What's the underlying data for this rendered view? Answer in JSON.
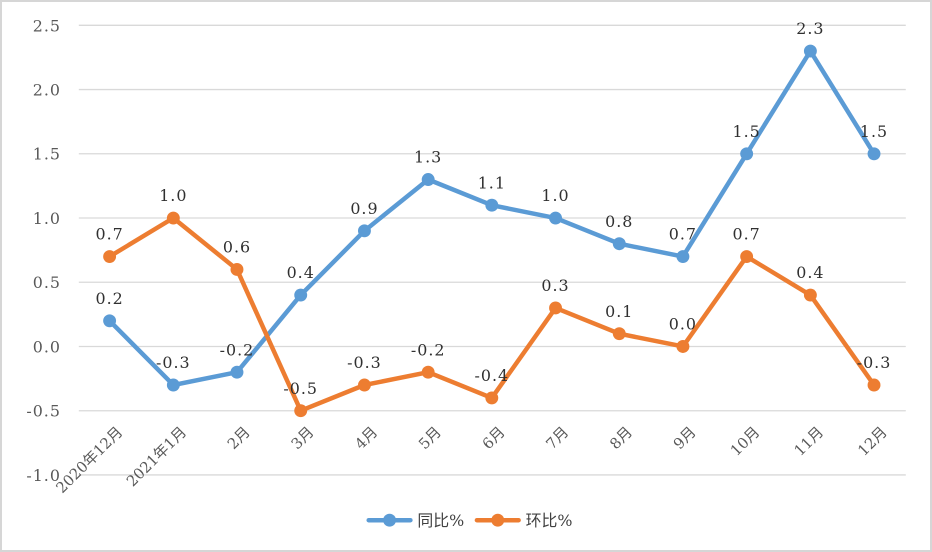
{
  "chart_data": {
    "type": "line",
    "title": "",
    "xlabel": "",
    "ylabel": "",
    "grid": true,
    "legend_position": "bottom",
    "categories": [
      "2020年12月",
      "2021年1月",
      "2月",
      "3月",
      "4月",
      "5月",
      "6月",
      "7月",
      "8月",
      "9月",
      "10月",
      "11月",
      "12月"
    ],
    "series": [
      {
        "name": "同比%",
        "color": "#5B9BD5",
        "values": [
          0.2,
          -0.3,
          -0.2,
          0.4,
          0.9,
          1.3,
          1.1,
          1.0,
          0.8,
          0.7,
          1.5,
          2.3,
          1.5
        ],
        "labels": [
          "0.2",
          "-0.3",
          "-0.2",
          "0.4",
          "0.9",
          "1.3",
          "1.1",
          "1.0",
          "0.8",
          "0.7",
          "1.5",
          "2.3",
          "1.5"
        ]
      },
      {
        "name": "环比%",
        "color": "#ED7D31",
        "values": [
          0.7,
          1.0,
          0.6,
          -0.5,
          -0.3,
          -0.2,
          -0.4,
          0.3,
          0.1,
          0.0,
          0.7,
          0.4,
          -0.3
        ],
        "labels": [
          "0.7",
          "1.0",
          "0.6",
          "-0.5",
          "-0.3",
          "-0.2",
          "-0.4",
          "0.3",
          "0.1",
          "0.0",
          "0.7",
          "0.4",
          "-0.3"
        ]
      }
    ],
    "y_axis": {
      "min": -1.0,
      "max": 2.5,
      "tick_values": [
        2.5,
        2.0,
        1.5,
        1.0,
        0.5,
        0.0,
        -0.5,
        -1.0
      ],
      "tick_labels": [
        "2.5",
        "2.0",
        "1.5",
        "1.0",
        "0.5",
        "0.0",
        "-0.5",
        "-1.0"
      ]
    },
    "legend": [
      {
        "label": "同比%",
        "color": "#5B9BD5"
      },
      {
        "label": "环比%",
        "color": "#ED7D31"
      }
    ],
    "colors": {
      "gridline": "#d9d9d9",
      "axis_label": "#595959",
      "data_label": "#303030",
      "legend_label": "#404040",
      "frame_border": "#d6d6d6",
      "background": "#ffffff"
    }
  }
}
